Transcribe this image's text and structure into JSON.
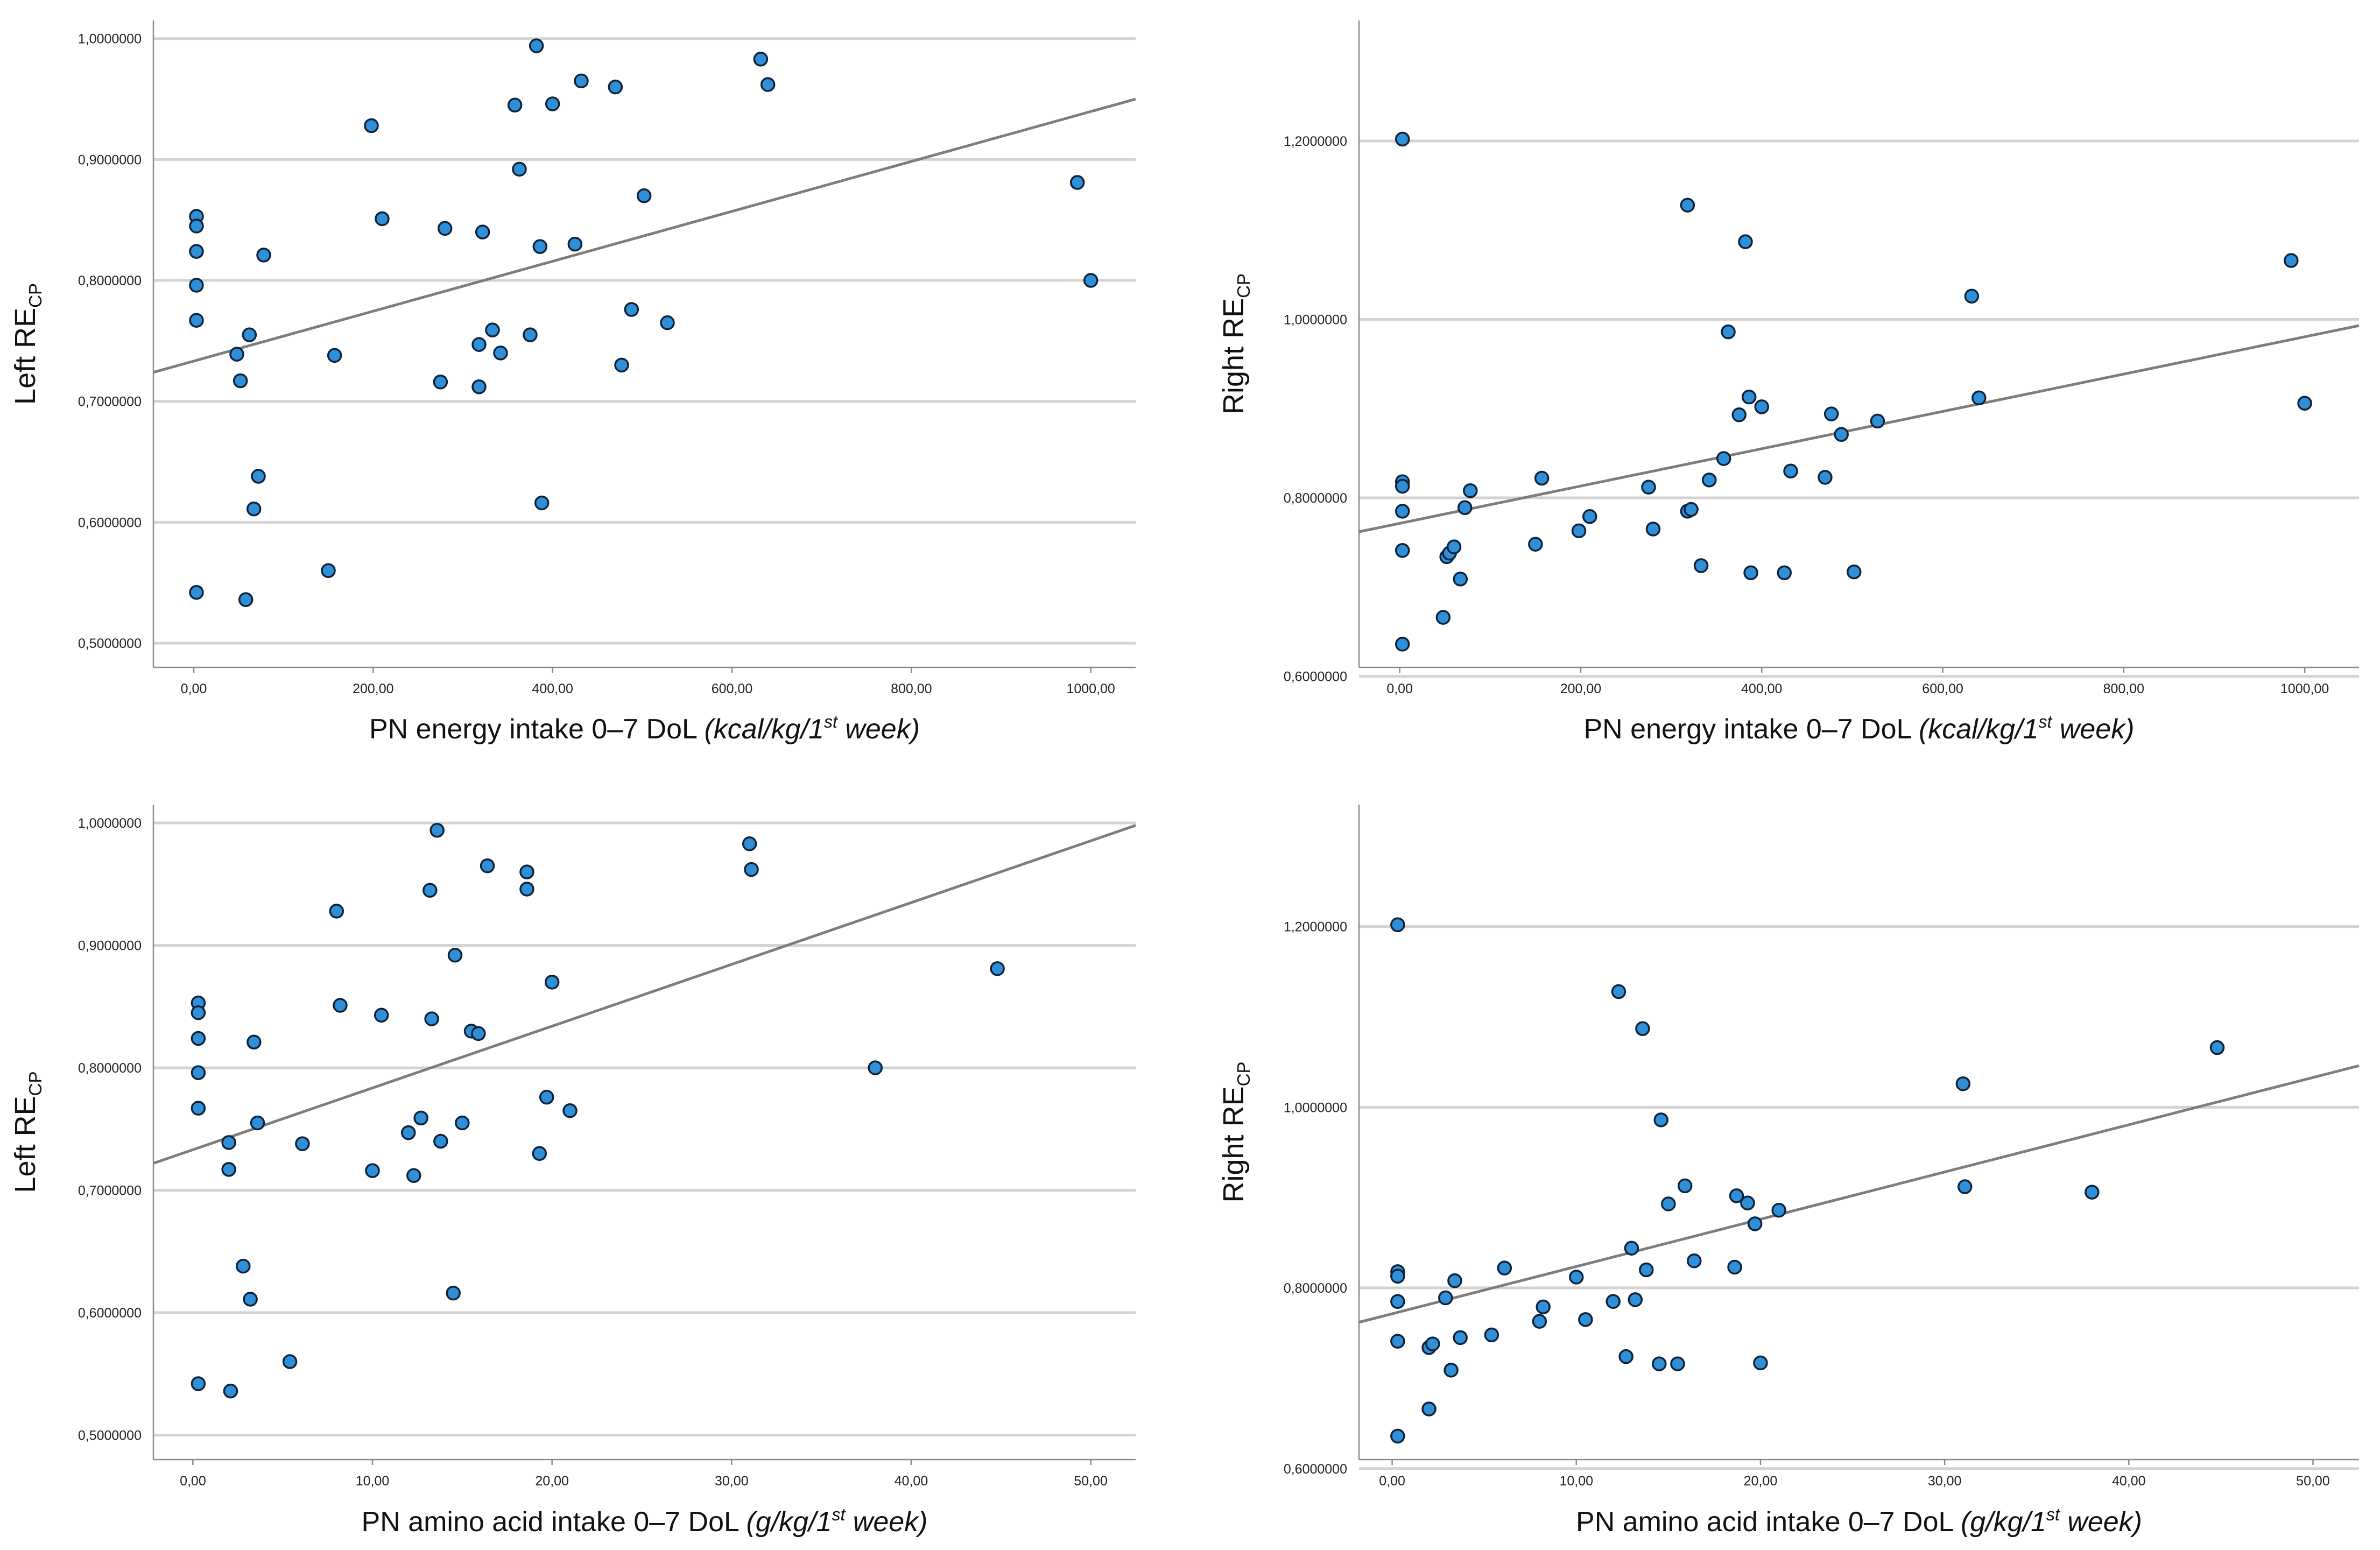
{
  "colors": {
    "point_fill": "#2f8fd8",
    "point_edge": "#0f2238",
    "fit_line": "#7d7d7d",
    "grid": "#d2d2d2"
  },
  "chart_data": [
    {
      "type": "scatter",
      "title": "",
      "ylabel_main": "Left RE",
      "ylabel_sub": "CP",
      "xlabel_main": "PN energy intake 0–7 DoL ",
      "xlabel_unit_pre": "(kcal/kg/1",
      "xlabel_unit_sup": "st",
      "xlabel_unit_post": " week)",
      "xlim": [
        -45,
        1050
      ],
      "ylim": [
        0.48,
        1.015
      ],
      "yticks": [
        0.5,
        0.6,
        0.7,
        0.8,
        0.9,
        1.0
      ],
      "ytick_labels": [
        "0,5000000",
        "0,6000000",
        "0,7000000",
        "0,8000000",
        "0,9000000",
        "1,0000000"
      ],
      "xticks": [
        0,
        200,
        400,
        600,
        800,
        1000
      ],
      "xtick_labels": [
        "0,00",
        "200,00",
        "400,00",
        "600,00",
        "800,00",
        "1000,00"
      ],
      "grid": true,
      "points": [
        [
          3,
          0.853
        ],
        [
          3,
          0.845
        ],
        [
          3,
          0.824
        ],
        [
          3,
          0.796
        ],
        [
          3,
          0.767
        ],
        [
          3,
          0.542
        ],
        [
          48,
          0.739
        ],
        [
          52,
          0.717
        ],
        [
          58,
          0.536
        ],
        [
          62,
          0.755
        ],
        [
          67,
          0.611
        ],
        [
          72,
          0.638
        ],
        [
          78,
          0.821
        ],
        [
          150,
          0.56
        ],
        [
          157,
          0.738
        ],
        [
          198,
          0.928
        ],
        [
          210,
          0.851
        ],
        [
          275,
          0.716
        ],
        [
          280,
          0.843
        ],
        [
          318,
          0.747
        ],
        [
          318,
          0.712
        ],
        [
          322,
          0.84
        ],
        [
          333,
          0.759
        ],
        [
          342,
          0.74
        ],
        [
          358,
          0.945
        ],
        [
          363,
          0.892
        ],
        [
          375,
          0.755
        ],
        [
          382,
          0.994
        ],
        [
          386,
          0.828
        ],
        [
          388,
          0.616
        ],
        [
          400,
          0.946
        ],
        [
          425,
          0.83
        ],
        [
          432,
          0.965
        ],
        [
          470,
          0.96
        ],
        [
          477,
          0.73
        ],
        [
          488,
          0.776
        ],
        [
          502,
          0.87
        ],
        [
          528,
          0.765
        ],
        [
          632,
          0.983
        ],
        [
          640,
          0.962
        ],
        [
          985,
          0.881
        ],
        [
          1000,
          0.8
        ]
      ],
      "fit": {
        "x": [
          -45,
          1050
        ],
        "y": [
          0.724,
          0.95
        ]
      }
    },
    {
      "type": "scatter",
      "title": "",
      "ylabel_main": "Right RE",
      "ylabel_sub": "CP",
      "xlabel_main": "PN energy intake 0–7 DoL ",
      "xlabel_unit_pre": "(kcal/kg/1",
      "xlabel_unit_sup": "st",
      "xlabel_unit_post": " week)",
      "xlim": [
        -45,
        1060
      ],
      "ylim": [
        0.61,
        1.335
      ],
      "yticks": [
        0.6,
        0.8,
        1.0,
        1.2
      ],
      "ytick_labels": [
        "0,6000000",
        "0,8000000",
        "1,0000000",
        "1,2000000"
      ],
      "xticks": [
        0,
        200,
        400,
        600,
        800,
        1000
      ],
      "xtick_labels": [
        "0,00",
        "200,00",
        "400,00",
        "600,00",
        "800,00",
        "1000,00"
      ],
      "grid": true,
      "points": [
        [
          3,
          1.202
        ],
        [
          3,
          0.818
        ],
        [
          3,
          0.813
        ],
        [
          3,
          0.785
        ],
        [
          3,
          0.741
        ],
        [
          3,
          0.636
        ],
        [
          48,
          0.666
        ],
        [
          52,
          0.734
        ],
        [
          55,
          0.738
        ],
        [
          60,
          0.745
        ],
        [
          67,
          0.709
        ],
        [
          72,
          0.789
        ],
        [
          78,
          0.808
        ],
        [
          150,
          0.748
        ],
        [
          157,
          0.822
        ],
        [
          198,
          0.763
        ],
        [
          210,
          0.779
        ],
        [
          275,
          0.812
        ],
        [
          280,
          0.765
        ],
        [
          318,
          1.128
        ],
        [
          318,
          0.785
        ],
        [
          322,
          0.787
        ],
        [
          333,
          0.724
        ],
        [
          342,
          0.82
        ],
        [
          358,
          0.844
        ],
        [
          363,
          0.986
        ],
        [
          375,
          0.893
        ],
        [
          382,
          1.087
        ],
        [
          386,
          0.913
        ],
        [
          388,
          0.716
        ],
        [
          400,
          0.902
        ],
        [
          425,
          0.716
        ],
        [
          432,
          0.83
        ],
        [
          470,
          0.823
        ],
        [
          477,
          0.894
        ],
        [
          488,
          0.871
        ],
        [
          502,
          0.717
        ],
        [
          528,
          0.886
        ],
        [
          632,
          1.026
        ],
        [
          640,
          0.912
        ],
        [
          985,
          1.066
        ],
        [
          1000,
          0.906
        ]
      ],
      "fit": {
        "x": [
          -45,
          1060
        ],
        "y": [
          0.762,
          0.993
        ]
      }
    },
    {
      "type": "scatter",
      "title": "",
      "ylabel_main": "Left RE",
      "ylabel_sub": "CP",
      "xlabel_main": "PN amino acid intake 0–7 DoL ",
      "xlabel_unit_pre": "(g/kg/1",
      "xlabel_unit_sup": "st",
      "xlabel_unit_post": " week)",
      "xlim": [
        -2.2,
        52.5
      ],
      "ylim": [
        0.48,
        1.015
      ],
      "yticks": [
        0.5,
        0.6,
        0.7,
        0.8,
        0.9,
        1.0
      ],
      "ytick_labels": [
        "0,5000000",
        "0,6000000",
        "0,7000000",
        "0,8000000",
        "0,9000000",
        "1,0000000"
      ],
      "xticks": [
        0,
        10,
        20,
        30,
        40,
        50
      ],
      "xtick_labels": [
        "0,00",
        "10,00",
        "20,00",
        "30,00",
        "40,00",
        "50,00"
      ],
      "grid": true,
      "points": [
        [
          0.3,
          0.853
        ],
        [
          0.3,
          0.845
        ],
        [
          0.3,
          0.824
        ],
        [
          0.3,
          0.796
        ],
        [
          0.3,
          0.767
        ],
        [
          0.3,
          0.542
        ],
        [
          2.0,
          0.739
        ],
        [
          2.0,
          0.717
        ],
        [
          2.1,
          0.536
        ],
        [
          2.8,
          0.638
        ],
        [
          3.2,
          0.611
        ],
        [
          3.4,
          0.821
        ],
        [
          3.6,
          0.755
        ],
        [
          5.4,
          0.56
        ],
        [
          6.1,
          0.738
        ],
        [
          8.0,
          0.928
        ],
        [
          8.2,
          0.851
        ],
        [
          10.0,
          0.716
        ],
        [
          10.5,
          0.843
        ],
        [
          12.0,
          0.747
        ],
        [
          12.3,
          0.712
        ],
        [
          12.7,
          0.759
        ],
        [
          13.2,
          0.945
        ],
        [
          13.3,
          0.84
        ],
        [
          13.6,
          0.994
        ],
        [
          13.8,
          0.74
        ],
        [
          14.5,
          0.616
        ],
        [
          14.6,
          0.892
        ],
        [
          15.0,
          0.755
        ],
        [
          15.5,
          0.83
        ],
        [
          15.9,
          0.828
        ],
        [
          16.4,
          0.965
        ],
        [
          18.6,
          0.96
        ],
        [
          18.6,
          0.946
        ],
        [
          19.3,
          0.73
        ],
        [
          19.7,
          0.776
        ],
        [
          20.0,
          0.87
        ],
        [
          21.0,
          0.765
        ],
        [
          31.0,
          0.983
        ],
        [
          31.1,
          0.962
        ],
        [
          38.0,
          0.8
        ],
        [
          44.8,
          0.881
        ]
      ],
      "fit": {
        "x": [
          -2.2,
          52.5
        ],
        "y": [
          0.722,
          0.998
        ]
      }
    },
    {
      "type": "scatter",
      "title": "",
      "ylabel_main": "Right RE",
      "ylabel_sub": "CP",
      "xlabel_main": "PN amino acid intake 0–7 DoL ",
      "xlabel_unit_pre": "(g/kg/1",
      "xlabel_unit_sup": "st",
      "xlabel_unit_post": " week)",
      "xlim": [
        -1.8,
        52.5
      ],
      "ylim": [
        0.61,
        1.335
      ],
      "yticks": [
        0.6,
        0.8,
        1.0,
        1.2
      ],
      "ytick_labels": [
        "0,6000000",
        "0,8000000",
        "1,0000000",
        "1,2000000"
      ],
      "xticks": [
        0,
        10,
        20,
        30,
        40,
        50
      ],
      "xtick_labels": [
        "0,00",
        "10,00",
        "20,00",
        "30,00",
        "40,00",
        "50,00"
      ],
      "grid": true,
      "points": [
        [
          0.3,
          1.202
        ],
        [
          0.3,
          0.818
        ],
        [
          0.3,
          0.813
        ],
        [
          0.3,
          0.785
        ],
        [
          0.3,
          0.741
        ],
        [
          0.3,
          0.636
        ],
        [
          2.0,
          0.666
        ],
        [
          2.0,
          0.734
        ],
        [
          2.2,
          0.738
        ],
        [
          2.9,
          0.789
        ],
        [
          3.2,
          0.709
        ],
        [
          3.4,
          0.808
        ],
        [
          3.7,
          0.745
        ],
        [
          5.4,
          0.748
        ],
        [
          6.1,
          0.822
        ],
        [
          8.0,
          0.763
        ],
        [
          8.2,
          0.779
        ],
        [
          10.0,
          0.812
        ],
        [
          10.5,
          0.765
        ],
        [
          12.0,
          0.785
        ],
        [
          12.3,
          1.128
        ],
        [
          12.7,
          0.724
        ],
        [
          13.0,
          0.844
        ],
        [
          13.2,
          0.787
        ],
        [
          13.6,
          1.087
        ],
        [
          13.8,
          0.82
        ],
        [
          14.5,
          0.716
        ],
        [
          14.6,
          0.986
        ],
        [
          15.0,
          0.893
        ],
        [
          15.5,
          0.716
        ],
        [
          15.9,
          0.913
        ],
        [
          16.4,
          0.83
        ],
        [
          18.6,
          0.823
        ],
        [
          18.7,
          0.902
        ],
        [
          19.3,
          0.894
        ],
        [
          19.7,
          0.871
        ],
        [
          20.0,
          0.717
        ],
        [
          21.0,
          0.886
        ],
        [
          31.0,
          1.026
        ],
        [
          31.1,
          0.912
        ],
        [
          38.0,
          0.906
        ],
        [
          44.8,
          1.066
        ]
      ],
      "fit": {
        "x": [
          -1.8,
          52.5
        ],
        "y": [
          0.762,
          1.046
        ]
      }
    }
  ]
}
